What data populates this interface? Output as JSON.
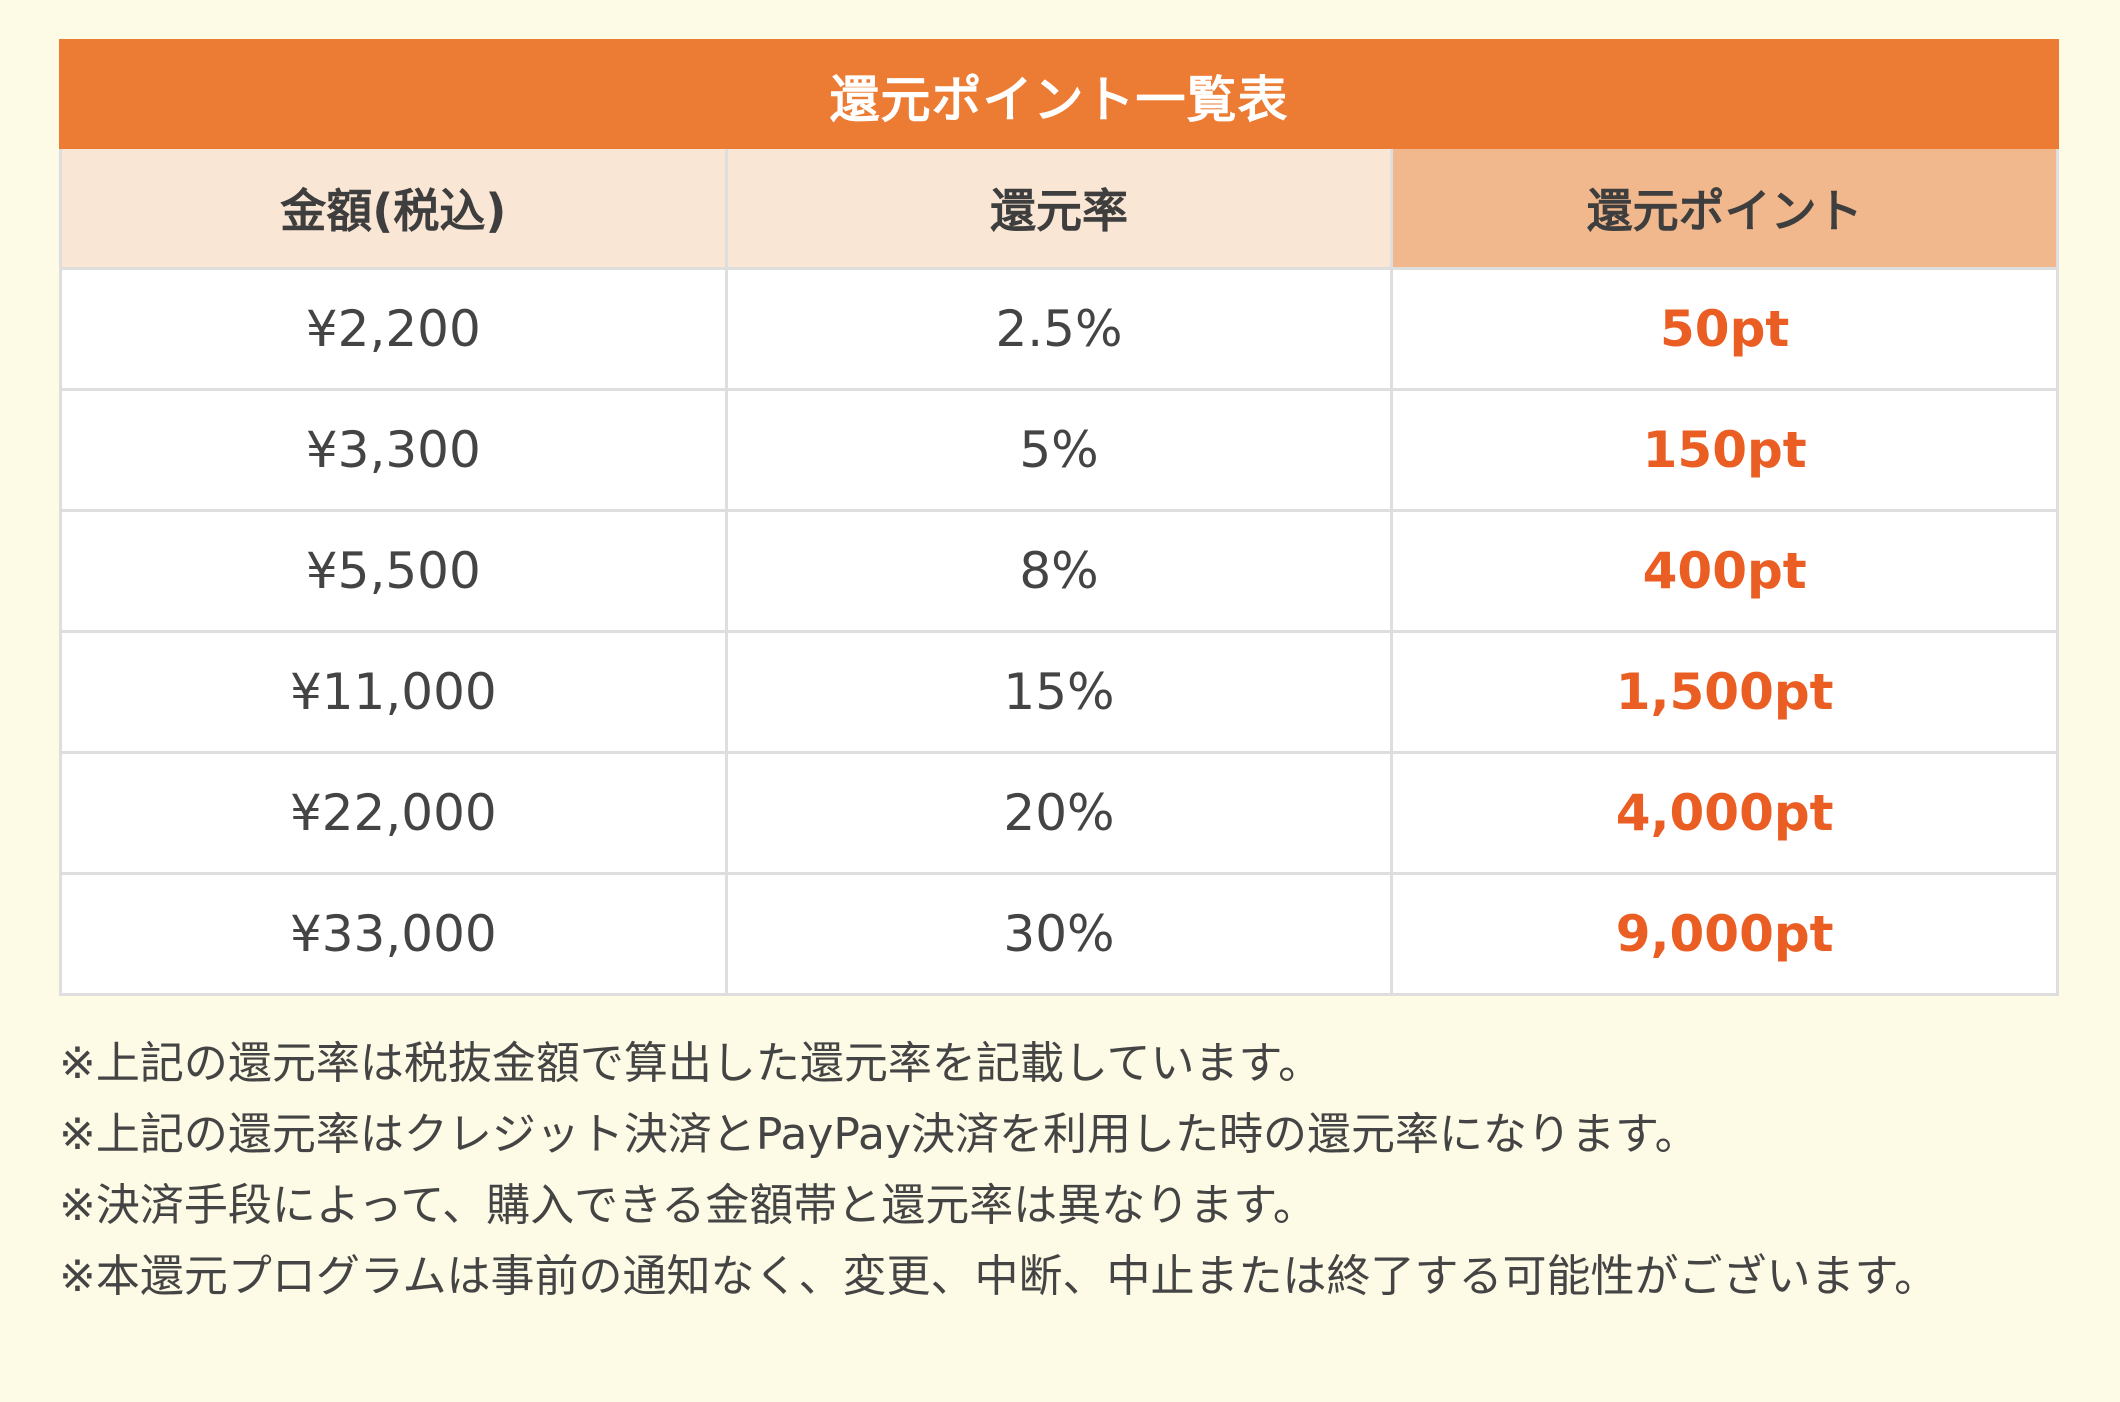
{
  "table": {
    "title": "還元ポイント一覧表",
    "headers": [
      "金額(税込)",
      "還元率",
      "還元ポイント"
    ],
    "rows": [
      {
        "amount": "¥2,200",
        "rate": "2.5%",
        "points": "50pt"
      },
      {
        "amount": "¥3,300",
        "rate": "5%",
        "points": "150pt"
      },
      {
        "amount": "¥5,500",
        "rate": "8%",
        "points": "400pt"
      },
      {
        "amount": "¥11,000",
        "rate": "15%",
        "points": "1,500pt"
      },
      {
        "amount": "¥22,000",
        "rate": "20%",
        "points": "4,000pt"
      },
      {
        "amount": "¥33,000",
        "rate": "30%",
        "points": "9,000pt"
      }
    ]
  },
  "notes": [
    "※上記の還元率は税抜金額で算出した還元率を記載しています。",
    "※上記の還元率はクレジット決済とPayPay決済を利用した時の還元率になります。",
    "※決済手段によって、購入できる金額帯と還元率は異なります。",
    "※本還元プログラムは事前の通知なく、変更、中断、中止または終了する可能性がございます。"
  ],
  "colors": {
    "title_bg": "#ec7b34",
    "header_bg": "#fae6d4",
    "header_accent_bg": "#f0b88c",
    "points_text": "#ea5e24",
    "page_bg": "#fdfae6"
  }
}
